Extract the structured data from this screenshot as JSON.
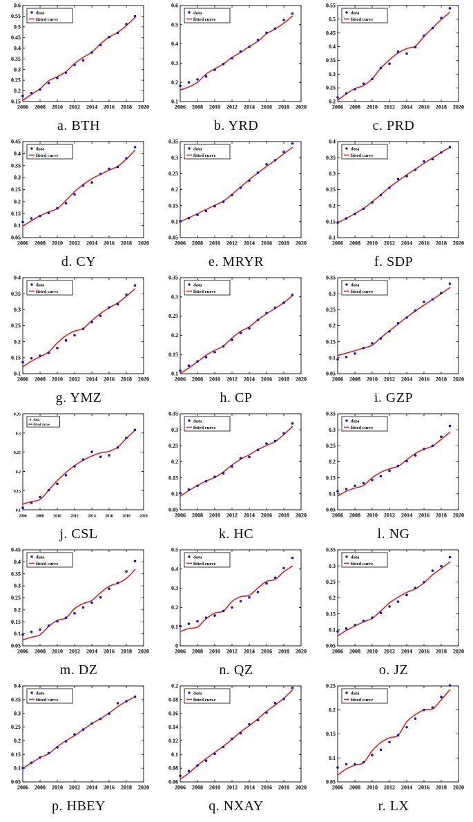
{
  "figure": {
    "legend": {
      "data_label": "data",
      "fit_label": "fitted curve"
    },
    "colors": {
      "data_marker": "#1414c8",
      "fitted_line": "#e32020",
      "axis": "#000000"
    },
    "x_axis": {
      "min": 2006,
      "max": 2020,
      "ticks": [
        2006,
        2008,
        2010,
        2012,
        2014,
        2016,
        2018,
        2020
      ]
    },
    "years": [
      2006,
      2007,
      2008,
      2009,
      2010,
      2011,
      2012,
      2013,
      2014,
      2015,
      2016,
      2017,
      2018,
      2019
    ]
  },
  "chart_data": [
    {
      "id": "a",
      "label": "a. BTH",
      "type": "scatter",
      "ylim": [
        0.15,
        0.6
      ],
      "ytick_step": 0.05,
      "grid": false,
      "legend_position": "top-left",
      "series": [
        {
          "name": "data",
          "values": [
            0.176,
            0.19,
            0.206,
            0.236,
            0.26,
            0.285,
            0.322,
            0.343,
            0.38,
            0.415,
            0.452,
            0.472,
            0.513,
            0.55
          ]
        },
        {
          "name": "fitted curve",
          "values": [
            0.155,
            0.183,
            0.21,
            0.247,
            0.267,
            0.29,
            0.328,
            0.357,
            0.381,
            0.42,
            0.452,
            0.474,
            0.506,
            0.544
          ]
        }
      ]
    },
    {
      "id": "b",
      "label": "b. YRD",
      "type": "scatter",
      "ylim": [
        0.1,
        0.6
      ],
      "ytick_step": 0.1,
      "grid": false,
      "legend_position": "top-left",
      "series": [
        {
          "name": "data",
          "values": [
            0.182,
            0.2,
            0.215,
            0.23,
            0.265,
            0.295,
            0.325,
            0.36,
            0.385,
            0.421,
            0.458,
            0.48,
            0.525,
            0.558
          ]
        },
        {
          "name": "fitted curve",
          "values": [
            0.16,
            0.176,
            0.2,
            0.243,
            0.27,
            0.296,
            0.33,
            0.356,
            0.386,
            0.414,
            0.453,
            0.478,
            0.508,
            0.545
          ]
        }
      ]
    },
    {
      "id": "c",
      "label": "c. PRD",
      "type": "scatter",
      "ylim": [
        0.2,
        0.55
      ],
      "ytick_step": 0.05,
      "grid": false,
      "legend_position": "top-left",
      "series": [
        {
          "name": "data",
          "values": [
            0.215,
            0.23,
            0.245,
            0.265,
            0.282,
            0.322,
            0.338,
            0.382,
            0.375,
            0.398,
            0.44,
            0.468,
            0.505,
            0.54
          ]
        },
        {
          "name": "fitted curve",
          "values": [
            0.205,
            0.228,
            0.247,
            0.258,
            0.283,
            0.322,
            0.352,
            0.377,
            0.393,
            0.402,
            0.437,
            0.468,
            0.499,
            0.525
          ]
        }
      ]
    },
    {
      "id": "d",
      "label": "d. CY",
      "type": "scatter",
      "ylim": [
        0.05,
        0.45
      ],
      "ytick_step": 0.05,
      "grid": false,
      "legend_position": "top-left",
      "series": [
        {
          "name": "data",
          "values": [
            0.115,
            0.13,
            0.14,
            0.153,
            0.172,
            0.193,
            0.23,
            0.267,
            0.28,
            0.315,
            0.337,
            0.345,
            0.38,
            0.427
          ]
        },
        {
          "name": "fitted curve",
          "values": [
            0.098,
            0.12,
            0.141,
            0.157,
            0.171,
            0.205,
            0.241,
            0.271,
            0.295,
            0.314,
            0.331,
            0.347,
            0.377,
            0.414
          ]
        }
      ]
    },
    {
      "id": "e",
      "label": "e. MRYR",
      "type": "scatter",
      "ylim": [
        0.05,
        0.35
      ],
      "ytick_step": 0.05,
      "grid": false,
      "legend_position": "top-left",
      "series": [
        {
          "name": "data",
          "values": [
            0.101,
            0.111,
            0.121,
            0.133,
            0.148,
            0.162,
            0.183,
            0.206,
            0.228,
            0.253,
            0.279,
            0.292,
            0.318,
            0.344
          ]
        },
        {
          "name": "fitted curve",
          "values": [
            0.1,
            0.112,
            0.125,
            0.138,
            0.151,
            0.164,
            0.185,
            0.208,
            0.231,
            0.252,
            0.272,
            0.291,
            0.312,
            0.332
          ]
        }
      ]
    },
    {
      "id": "f",
      "label": "f. SDP",
      "type": "scatter",
      "ylim": [
        0.1,
        0.4
      ],
      "ytick_step": 0.05,
      "grid": false,
      "legend_position": "top-left",
      "series": [
        {
          "name": "data",
          "values": [
            0.147,
            0.16,
            0.174,
            0.19,
            0.21,
            0.233,
            0.256,
            0.283,
            0.292,
            0.312,
            0.338,
            0.345,
            0.366,
            0.383
          ]
        },
        {
          "name": "fitted curve",
          "values": [
            0.146,
            0.16,
            0.175,
            0.191,
            0.212,
            0.234,
            0.257,
            0.277,
            0.296,
            0.314,
            0.332,
            0.349,
            0.366,
            0.382
          ]
        }
      ]
    },
    {
      "id": "g",
      "label": "g. YMZ",
      "type": "scatter",
      "ylim": [
        0.1,
        0.4
      ],
      "ytick_step": 0.05,
      "grid": false,
      "legend_position": "top-left",
      "series": [
        {
          "name": "data",
          "values": [
            0.136,
            0.148,
            0.156,
            0.165,
            0.18,
            0.204,
            0.22,
            0.24,
            0.261,
            0.281,
            0.307,
            0.317,
            0.347,
            0.376
          ]
        },
        {
          "name": "fitted curve",
          "values": [
            0.121,
            0.139,
            0.153,
            0.168,
            0.196,
            0.219,
            0.233,
            0.241,
            0.266,
            0.288,
            0.306,
            0.321,
            0.342,
            0.365
          ]
        }
      ]
    },
    {
      "id": "h",
      "label": "h. CP",
      "type": "scatter",
      "ylim": [
        0.1,
        0.35
      ],
      "ytick_step": 0.05,
      "grid": false,
      "legend_position": "top-left",
      "series": [
        {
          "name": "data",
          "values": [
            0.108,
            0.121,
            0.132,
            0.143,
            0.156,
            0.171,
            0.188,
            0.206,
            0.218,
            0.24,
            0.258,
            0.272,
            0.285,
            0.305
          ]
        },
        {
          "name": "fitted curve",
          "values": [
            0.1,
            0.115,
            0.131,
            0.148,
            0.161,
            0.172,
            0.193,
            0.21,
            0.222,
            0.24,
            0.256,
            0.27,
            0.285,
            0.303
          ]
        }
      ]
    },
    {
      "id": "i",
      "label": "i. GZP",
      "type": "scatter",
      "ylim": [
        0.05,
        0.35
      ],
      "ytick_step": 0.05,
      "grid": false,
      "legend_position": "top-left",
      "series": [
        {
          "name": "data",
          "values": [
            0.095,
            0.102,
            0.113,
            0.13,
            0.145,
            0.16,
            0.182,
            0.208,
            0.225,
            0.247,
            0.274,
            0.282,
            0.302,
            0.331
          ]
        },
        {
          "name": "fitted curve",
          "values": [
            0.107,
            0.114,
            0.122,
            0.13,
            0.139,
            0.162,
            0.184,
            0.205,
            0.226,
            0.246,
            0.264,
            0.282,
            0.3,
            0.319
          ]
        }
      ]
    },
    {
      "id": "j",
      "label": "j. CSL",
      "type": "scatter",
      "ylim": [
        0.1,
        0.35
      ],
      "ytick_step": 0.05,
      "grid": false,
      "legend_position": "top-left",
      "small_fonts": true,
      "series": [
        {
          "name": "data",
          "values": [
            0.105,
            0.118,
            0.133,
            0.151,
            0.168,
            0.19,
            0.213,
            0.231,
            0.251,
            0.238,
            0.242,
            0.262,
            0.287,
            0.308
          ]
        },
        {
          "name": "fitted curve",
          "values": [
            0.115,
            0.121,
            0.127,
            0.151,
            0.176,
            0.197,
            0.215,
            0.229,
            0.24,
            0.248,
            0.252,
            0.263,
            0.286,
            0.307
          ]
        }
      ]
    },
    {
      "id": "k",
      "label": "k. HC",
      "type": "scatter",
      "ylim": [
        0.05,
        0.35
      ],
      "ytick_step": 0.05,
      "grid": false,
      "legend_position": "top-left",
      "series": [
        {
          "name": "data",
          "values": [
            0.102,
            0.113,
            0.125,
            0.139,
            0.153,
            0.164,
            0.185,
            0.211,
            0.215,
            0.237,
            0.257,
            0.265,
            0.289,
            0.32
          ]
        },
        {
          "name": "fitted curve",
          "values": [
            0.092,
            0.11,
            0.126,
            0.14,
            0.151,
            0.168,
            0.19,
            0.208,
            0.222,
            0.238,
            0.251,
            0.263,
            0.285,
            0.31
          ]
        }
      ]
    },
    {
      "id": "l",
      "label": "l. NG",
      "type": "scatter",
      "ylim": [
        0.05,
        0.35
      ],
      "ytick_step": 0.05,
      "grid": false,
      "legend_position": "top-left",
      "series": [
        {
          "name": "data",
          "values": [
            0.108,
            0.115,
            0.125,
            0.133,
            0.143,
            0.155,
            0.172,
            0.187,
            0.202,
            0.22,
            0.24,
            0.25,
            0.278,
            0.312
          ]
        },
        {
          "name": "fitted curve",
          "values": [
            0.093,
            0.108,
            0.118,
            0.126,
            0.15,
            0.167,
            0.178,
            0.186,
            0.206,
            0.226,
            0.239,
            0.249,
            0.27,
            0.292
          ]
        }
      ]
    },
    {
      "id": "m",
      "label": "m. DZ",
      "type": "scatter",
      "ylim": [
        0.05,
        0.45
      ],
      "ytick_step": 0.05,
      "grid": false,
      "legend_position": "top-left",
      "series": [
        {
          "name": "data",
          "values": [
            0.097,
            0.108,
            0.118,
            0.134,
            0.152,
            0.167,
            0.186,
            0.21,
            0.23,
            0.252,
            0.288,
            0.312,
            0.36,
            0.403
          ]
        },
        {
          "name": "fitted curve",
          "values": [
            0.075,
            0.086,
            0.096,
            0.131,
            0.156,
            0.166,
            0.205,
            0.226,
            0.239,
            0.271,
            0.298,
            0.311,
            0.331,
            0.368
          ]
        }
      ]
    },
    {
      "id": "n",
      "label": "n. QZ",
      "type": "scatter",
      "ylim": [
        0,
        0.5
      ],
      "ytick_step": 0.1,
      "grid": false,
      "legend_position": "top-left",
      "series": [
        {
          "name": "data",
          "values": [
            0.103,
            0.115,
            0.128,
            0.147,
            0.158,
            0.182,
            0.2,
            0.232,
            0.252,
            0.28,
            0.325,
            0.355,
            0.405,
            0.458
          ]
        },
        {
          "name": "fitted curve",
          "values": [
            0.075,
            0.09,
            0.098,
            0.141,
            0.171,
            0.181,
            0.231,
            0.256,
            0.263,
            0.301,
            0.336,
            0.346,
            0.386,
            0.415
          ]
        }
      ]
    },
    {
      "id": "o",
      "label": "o. JZ",
      "type": "scatter",
      "ylim": [
        0.05,
        0.35
      ],
      "ytick_step": 0.05,
      "grid": false,
      "legend_position": "top-left",
      "series": [
        {
          "name": "data",
          "values": [
            0.095,
            0.104,
            0.115,
            0.128,
            0.138,
            0.153,
            0.173,
            0.188,
            0.209,
            0.231,
            0.249,
            0.285,
            0.299,
            0.327
          ]
        },
        {
          "name": "fitted curve",
          "values": [
            0.081,
            0.098,
            0.112,
            0.125,
            0.136,
            0.159,
            0.184,
            0.202,
            0.217,
            0.228,
            0.247,
            0.272,
            0.292,
            0.312
          ]
        }
      ]
    },
    {
      "id": "p",
      "label": "p. HBEY",
      "type": "scatter",
      "ylim": [
        0.05,
        0.4
      ],
      "ytick_step": 0.05,
      "grid": false,
      "legend_position": "top-left",
      "series": [
        {
          "name": "data",
          "values": [
            0.101,
            0.12,
            0.139,
            0.155,
            0.176,
            0.198,
            0.223,
            0.241,
            0.263,
            0.28,
            0.299,
            0.337,
            0.344,
            0.361
          ]
        },
        {
          "name": "fitted curve",
          "values": [
            0.099,
            0.119,
            0.139,
            0.153,
            0.179,
            0.2,
            0.219,
            0.241,
            0.262,
            0.281,
            0.301,
            0.324,
            0.344,
            0.36
          ]
        }
      ]
    },
    {
      "id": "q",
      "label": "q. NXAY",
      "type": "scatter",
      "ylim": [
        0.06,
        0.2
      ],
      "ytick_step": 0.02,
      "grid": false,
      "legend_position": "top-left",
      "series": [
        {
          "name": "data",
          "values": [
            0.069,
            0.076,
            0.084,
            0.091,
            0.101,
            0.111,
            0.123,
            0.131,
            0.144,
            0.15,
            0.161,
            0.175,
            0.181,
            0.197
          ]
        },
        {
          "name": "fitted curve",
          "values": [
            0.064,
            0.073,
            0.084,
            0.094,
            0.103,
            0.112,
            0.122,
            0.133,
            0.142,
            0.152,
            0.163,
            0.172,
            0.182,
            0.194
          ]
        }
      ]
    },
    {
      "id": "r",
      "label": "r. LX",
      "type": "scatter",
      "ylim": [
        0.05,
        0.25
      ],
      "ytick_step": 0.05,
      "grid": false,
      "legend_position": "top-left",
      "series": [
        {
          "name": "data",
          "values": [
            0.08,
            0.087,
            0.087,
            0.091,
            0.106,
            0.117,
            0.133,
            0.147,
            0.164,
            0.182,
            0.2,
            0.205,
            0.227,
            0.251
          ]
        },
        {
          "name": "fitted curve",
          "values": [
            0.064,
            0.077,
            0.085,
            0.09,
            0.115,
            0.132,
            0.142,
            0.147,
            0.175,
            0.19,
            0.2,
            0.202,
            0.221,
            0.242
          ]
        }
      ]
    }
  ]
}
